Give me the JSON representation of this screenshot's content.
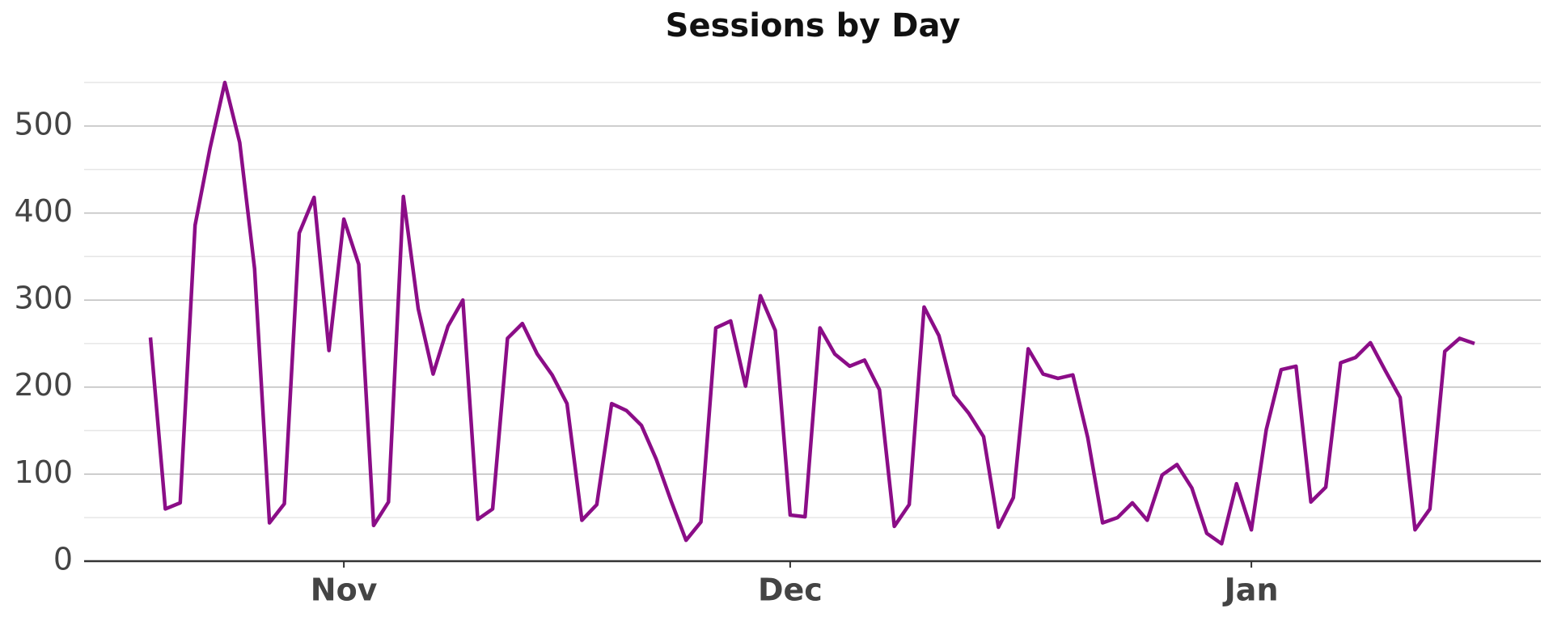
{
  "chart_data": {
    "type": "line",
    "title": "Sessions by Day",
    "categories": [
      null,
      null,
      null,
      null,
      null,
      null,
      null,
      null,
      null,
      null,
      null,
      null,
      null,
      "Nov",
      null,
      null,
      null,
      null,
      null,
      null,
      null,
      null,
      null,
      null,
      null,
      null,
      null,
      null,
      null,
      null,
      null,
      null,
      null,
      null,
      null,
      null,
      null,
      null,
      null,
      null,
      null,
      null,
      null,
      "Dec",
      null,
      null,
      null,
      null,
      null,
      null,
      null,
      null,
      null,
      null,
      null,
      null,
      null,
      null,
      null,
      null,
      null,
      null,
      null,
      null,
      null,
      null,
      null,
      null,
      null,
      null,
      null,
      null,
      null,
      null,
      "Jan",
      null,
      null,
      null,
      null,
      null,
      null,
      null,
      null,
      null,
      null,
      null,
      null,
      null,
      null,
      null
    ],
    "values": [
      257,
      60,
      67,
      386,
      474,
      550,
      481,
      336,
      44,
      66,
      377,
      418,
      242,
      393,
      341,
      41,
      68,
      419,
      290,
      215,
      270,
      300,
      48,
      60,
      256,
      273,
      238,
      214,
      181,
      47,
      65,
      181,
      173,
      156,
      117,
      69,
      24,
      45,
      268,
      276,
      201,
      305,
      265,
      53,
      51,
      268,
      238,
      224,
      231,
      197,
      40,
      65,
      292,
      259,
      191,
      170,
      143,
      39,
      73,
      244,
      215,
      210,
      214,
      142,
      44,
      50,
      67,
      47,
      99,
      111,
      84,
      32,
      20,
      89,
      36,
      151,
      220,
      224,
      68,
      85,
      228,
      234,
      251,
      219,
      188,
      36,
      60,
      241,
      256,
      250
    ],
    "color": "#8b0d87",
    "ylim": [
      0,
      550
    ],
    "yticks": [
      0,
      100,
      200,
      300,
      400,
      500
    ],
    "yminor": [
      50,
      150,
      250,
      350,
      450,
      550
    ],
    "grid": true
  }
}
